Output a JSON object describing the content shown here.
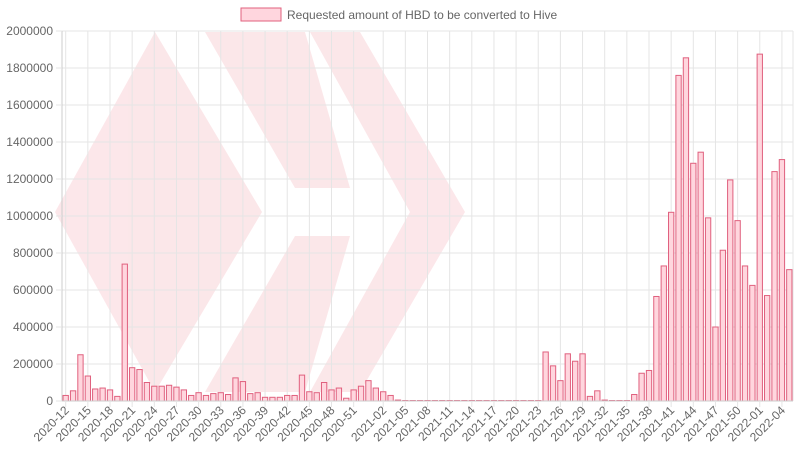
{
  "chart_data": {
    "type": "bar",
    "ylim": [
      0,
      2000000
    ],
    "yticks": [
      0,
      200000,
      400000,
      600000,
      800000,
      1000000,
      1200000,
      1400000,
      1600000,
      1800000,
      2000000
    ],
    "grid": true,
    "legend_position": "top-center",
    "colors": {
      "bar_fill": "#ffd6de",
      "bar_stroke": "#e0607e",
      "grid": "#e5e5e5",
      "watermark": "#fbe3e6"
    },
    "categories": [
      "2020-12",
      "2020-13",
      "2020-14",
      "2020-15",
      "2020-16",
      "2020-17",
      "2020-18",
      "2020-19",
      "2020-20",
      "2020-21",
      "2020-22",
      "2020-23",
      "2020-24",
      "2020-25",
      "2020-26",
      "2020-27",
      "2020-28",
      "2020-29",
      "2020-30",
      "2020-31",
      "2020-32",
      "2020-33",
      "2020-34",
      "2020-35",
      "2020-36",
      "2020-37",
      "2020-38",
      "2020-39",
      "2020-40",
      "2020-41",
      "2020-42",
      "2020-43",
      "2020-44",
      "2020-45",
      "2020-46",
      "2020-47",
      "2020-48",
      "2020-49",
      "2020-50",
      "2020-51",
      "2020-52",
      "2020-53",
      "2021-01",
      "2021-02",
      "2021-03",
      "2021-04",
      "2021-05",
      "2021-06",
      "2021-07",
      "2021-08",
      "2021-09",
      "2021-10",
      "2021-11",
      "2021-12",
      "2021-13",
      "2021-14",
      "2021-15",
      "2021-16",
      "2021-17",
      "2021-18",
      "2021-19",
      "2021-20",
      "2021-21",
      "2021-22",
      "2021-23",
      "2021-24",
      "2021-25",
      "2021-26",
      "2021-27",
      "2021-28",
      "2021-29",
      "2021-30",
      "2021-31",
      "2021-32",
      "2021-33",
      "2021-34",
      "2021-35",
      "2021-36",
      "2021-37",
      "2021-38",
      "2021-39",
      "2021-40",
      "2021-41",
      "2021-42",
      "2021-43",
      "2021-44",
      "2021-45",
      "2021-46",
      "2021-47",
      "2021-48",
      "2021-49",
      "2021-50",
      "2021-51",
      "2021-52",
      "2022-01",
      "2022-02",
      "2022-03",
      "2022-04",
      "2022-05"
    ],
    "tick_labels": [
      "2020-12",
      "2020-15",
      "2020-18",
      "2020-21",
      "2020-24",
      "2020-27",
      "2020-30",
      "2020-33",
      "2020-36",
      "2020-39",
      "2020-42",
      "2020-45",
      "2020-48",
      "2020-51",
      "2021-02",
      "2021-05",
      "2021-08",
      "2021-11",
      "2021-14",
      "2021-17",
      "2021-20",
      "2021-23",
      "2021-26",
      "2021-29",
      "2021-32",
      "2021-35",
      "2021-38",
      "2021-41",
      "2021-44",
      "2021-47",
      "2021-50",
      "2022-01",
      "2022-04"
    ],
    "series": [
      {
        "name": "Requested amount of HBD to be converted to Hive",
        "values": [
          30000,
          55000,
          250000,
          135000,
          65000,
          70000,
          60000,
          25000,
          740000,
          180000,
          170000,
          100000,
          80000,
          80000,
          85000,
          75000,
          60000,
          30000,
          45000,
          30000,
          40000,
          45000,
          35000,
          125000,
          105000,
          40000,
          45000,
          20000,
          20000,
          20000,
          30000,
          30000,
          140000,
          50000,
          45000,
          100000,
          60000,
          70000,
          15000,
          60000,
          80000,
          110000,
          70000,
          50000,
          30000,
          5000,
          2000,
          2000,
          2000,
          2000,
          2000,
          2000,
          2000,
          2000,
          2000,
          2000,
          2000,
          2000,
          2000,
          2000,
          2000,
          2000,
          2000,
          2000,
          2000,
          265000,
          190000,
          110000,
          255000,
          215000,
          255000,
          25000,
          55000,
          5000,
          2000,
          2000,
          2000,
          35000,
          150000,
          165000,
          565000,
          730000,
          1020000,
          1760000,
          1855000,
          1285000,
          1345000,
          990000,
          400000,
          815000,
          1195000,
          975000,
          730000,
          625000,
          1875000,
          570000,
          1240000,
          1305000,
          710000
        ]
      }
    ]
  }
}
